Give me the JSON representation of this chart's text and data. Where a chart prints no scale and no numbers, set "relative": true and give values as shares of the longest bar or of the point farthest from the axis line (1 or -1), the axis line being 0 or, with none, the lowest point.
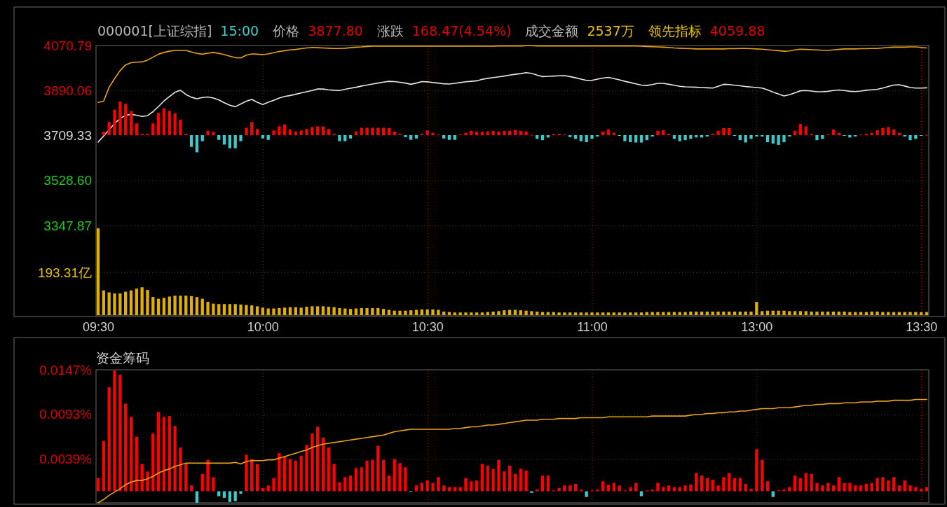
{
  "chart_data": [
    {
      "type": "line",
      "annotations": [
        "000001[上证综指]",
        "15:00",
        "价格",
        "3877.80",
        "涨跌",
        "168.47(4.54%)",
        "成交金额",
        "2537万",
        "领先指标",
        "4059.88"
      ],
      "categories": [
        "09:30",
        null,
        null,
        null,
        null,
        null,
        null,
        null,
        null,
        null,
        null,
        null,
        null,
        null,
        null,
        null,
        null,
        null,
        null,
        null,
        null,
        null,
        null,
        null,
        null,
        null,
        null,
        null,
        null,
        null,
        "10:00",
        null,
        null,
        null,
        null,
        null,
        null,
        null,
        null,
        null,
        null,
        null,
        null,
        null,
        null,
        null,
        null,
        null,
        null,
        null,
        null,
        null,
        null,
        null,
        null,
        null,
        null,
        null,
        null,
        null,
        "10:30",
        null,
        null,
        null,
        null,
        null,
        null,
        null,
        null,
        null,
        null,
        null,
        null,
        null,
        null,
        null,
        null,
        null,
        null,
        null,
        null,
        null,
        null,
        null,
        null,
        null,
        null,
        null,
        null,
        null,
        "11:00",
        null,
        null,
        null,
        null,
        null,
        null,
        null,
        null,
        null,
        null,
        null,
        null,
        null,
        null,
        null,
        null,
        null,
        null,
        null,
        null,
        null,
        null,
        null,
        null,
        null,
        null,
        null,
        null,
        null,
        "13:00",
        null,
        null,
        null,
        null,
        null,
        null,
        null,
        null,
        null,
        null,
        null,
        null,
        null,
        null,
        null,
        null,
        null,
        null,
        null,
        null,
        null,
        null,
        null,
        null,
        null,
        null,
        null,
        null,
        null,
        "13:30",
        null
      ],
      "ylim": [
        2987.8,
        4070.79
      ],
      "yticks": [
        4070.79,
        3890.06,
        3709.33,
        {
          "value": 3528.6,
          "label": "3528.60"
        },
        3347.87
      ],
      "y2lim": [
        0,
        1221
      ],
      "y2ticks": [
        {
          "value": 193.31,
          "label": "193.31亿"
        }
      ],
      "grid": true,
      "series": [
        {
          "color": "#e6e6e6",
          "values": [
            3683,
            3707,
            3732,
            3758,
            3777,
            3791,
            3794,
            3791,
            3786,
            3789,
            3805,
            3826,
            3848,
            3866,
            3883,
            3891,
            3874,
            3863,
            3857,
            3862,
            3864,
            3860,
            3852,
            3841,
            3831,
            3825,
            3836,
            3847,
            3854,
            3843,
            3834,
            3843,
            3851,
            3860,
            3866,
            3870,
            3875,
            3880,
            3885,
            3890,
            3896,
            3896,
            3893,
            3891,
            3890,
            3895,
            3899,
            3903,
            3908,
            3912,
            3916,
            3920,
            3924,
            3927,
            3926,
            3923,
            3920,
            3915,
            3920,
            3926,
            3925,
            3922,
            3920,
            3917,
            3916,
            3919,
            3922,
            3925,
            3927,
            3929,
            3935,
            3939,
            3942,
            3945,
            3948,
            3952,
            3955,
            3958,
            3962,
            3959,
            3952,
            3946,
            3947,
            3948,
            3949,
            3950,
            3946,
            3941,
            3936,
            3931,
            3931,
            3936,
            3940,
            3943,
            3938,
            3933,
            3927,
            3922,
            3917,
            3912,
            3910,
            3914,
            3919,
            3919,
            3915,
            3911,
            3907,
            3905,
            3904,
            3903,
            3902,
            3901,
            3900,
            3907,
            3915,
            3914,
            3911,
            3909,
            3906,
            3904,
            3902,
            3900,
            3893,
            3884,
            3876,
            3868,
            3873,
            3881,
            3889,
            3890,
            3888,
            3885,
            3885,
            3887,
            3890,
            3892,
            3890,
            3887,
            3886,
            3888,
            3891,
            3893,
            3895,
            3900,
            3906,
            3912,
            3913,
            3908,
            3902,
            3900,
            3900,
            3901
          ]
        },
        {
          "color": "#e8a317",
          "values": [
            3842,
            3847,
            3903,
            3938,
            3970,
            3993,
            4002,
            4004,
            4005,
            4012,
            4024,
            4036,
            4043,
            4048,
            4051,
            4051,
            4051,
            4045,
            4039,
            4036,
            4040,
            4043,
            4039,
            4034,
            4028,
            4022,
            4021,
            4032,
            4037,
            4036,
            4034,
            4037,
            4042,
            4047,
            4050,
            4053,
            4055,
            4058,
            4061,
            4063,
            4062,
            4061,
            4060,
            4059,
            4059,
            4060,
            4062,
            4064,
            4065,
            4067,
            4068,
            4068,
            4068,
            4068,
            4068,
            4068,
            4068,
            4068,
            4068,
            4068,
            4068,
            4068,
            4068,
            4068,
            4068,
            4068,
            4068,
            4068,
            4068,
            4068,
            4068,
            4068,
            4068,
            4069,
            4069,
            4069,
            4069,
            4069,
            4070,
            4070,
            4069,
            4069,
            4069,
            4069,
            4069,
            4069,
            4069,
            4069,
            4069,
            4069,
            4069,
            4069,
            4069,
            4069,
            4069,
            4069,
            4069,
            4069,
            4069,
            4068,
            4067,
            4066,
            4065,
            4064,
            4063,
            4061,
            4060,
            4059,
            4058,
            4057,
            4057,
            4057,
            4057,
            4057,
            4057,
            4058,
            4058,
            4059,
            4059,
            4058,
            4057,
            4056,
            4054,
            4052,
            4050,
            4048,
            4049,
            4053,
            4056,
            4055,
            4054,
            4053,
            4052,
            4051,
            4053,
            4055,
            4057,
            4057,
            4057,
            4058,
            4058,
            4059,
            4059,
            4061,
            4063,
            4064,
            4064,
            4064,
            4065,
            4065,
            4063,
            4061
          ]
        },
        {
          "type": "bar",
          "axis": "y2",
          "color": "#e0b000",
          "values": [
            393,
            112,
            103,
            98,
            98,
            106,
            112,
            120,
            126,
            114,
            82,
            74,
            78,
            84,
            88,
            88,
            88,
            86,
            82,
            74,
            60,
            52,
            50,
            50,
            50,
            50,
            48,
            46,
            44,
            40,
            34,
            30,
            30,
            32,
            34,
            36,
            36,
            34,
            38,
            40,
            40,
            40,
            38,
            36,
            32,
            30,
            28,
            30,
            32,
            32,
            32,
            32,
            28,
            24,
            20,
            20,
            20,
            22,
            24,
            26,
            26,
            26,
            24,
            16,
            14,
            12,
            12,
            12,
            12,
            12,
            12,
            14,
            16,
            18,
            22,
            24,
            24,
            22,
            20,
            18,
            16,
            14,
            14,
            14,
            12,
            12,
            12,
            12,
            12,
            12,
            12,
            12,
            12,
            12,
            12,
            12,
            12,
            12,
            12,
            12,
            14,
            14,
            14,
            14,
            14,
            14,
            14,
            14,
            16,
            16,
            16,
            16,
            16,
            16,
            16,
            16,
            16,
            16,
            16,
            16,
            60,
            18,
            20,
            20,
            20,
            20,
            18,
            18,
            18,
            18,
            16,
            16,
            16,
            16,
            16,
            16,
            16,
            14,
            14,
            14,
            14,
            16,
            16,
            14,
            14,
            14,
            14,
            14,
            14,
            14,
            14,
            14
          ]
        }
      ]
    },
    {
      "type": "bar",
      "relative": true,
      "tick_labels": false,
      "categories": [
        null,
        null,
        null,
        null,
        null,
        null,
        null,
        null,
        null,
        null,
        null,
        null,
        null,
        null,
        null,
        null,
        null,
        null,
        null,
        null,
        null,
        null,
        null,
        null,
        null,
        null,
        null,
        null,
        null,
        null,
        null,
        null,
        null,
        null,
        null,
        null,
        null,
        null,
        null,
        null,
        null,
        null,
        null,
        null,
        null,
        null,
        null,
        null,
        null,
        null,
        null,
        null,
        null,
        null,
        null,
        null,
        null,
        null,
        null,
        null,
        null,
        null,
        null,
        null,
        null,
        null,
        null,
        null,
        null,
        null,
        null,
        null,
        null,
        null,
        null,
        null,
        null,
        null,
        null,
        null,
        null,
        null,
        null,
        null,
        null,
        null,
        null,
        null,
        null,
        null,
        null,
        null,
        null,
        null,
        null,
        null,
        null,
        null,
        null,
        null,
        null,
        null,
        null,
        null,
        null,
        null,
        null,
        null,
        null,
        null,
        null,
        null,
        null,
        null,
        null,
        null,
        null,
        null,
        null,
        null,
        null,
        null,
        null,
        null,
        null,
        null,
        null,
        null,
        null,
        null,
        null,
        null,
        null,
        null,
        null,
        null,
        null,
        null,
        null,
        null,
        null,
        null,
        null,
        null,
        null,
        null,
        null,
        null,
        null,
        null,
        null,
        null
      ],
      "values": [
        null,
        0.1,
        0.39,
        0.76,
        1,
        0.93,
        0.72,
        0.35,
        0.04,
        0.04,
        0.35,
        0.66,
        0.8,
        0.72,
        0.65,
        0.46,
        0.04,
        -0.35,
        -0.51,
        -0.18,
        0.13,
        0.1,
        -0.14,
        -0.28,
        -0.39,
        -0.39,
        -0.18,
        0.22,
        0.39,
        0.18,
        -0.1,
        -0.14,
        0.14,
        0.26,
        0.32,
        0.17,
        0.11,
        0.14,
        0.18,
        0.24,
        0.26,
        0.26,
        0.18,
        0.04,
        -0.18,
        -0.18,
        -0.1,
        0.11,
        0.22,
        0.22,
        0.22,
        0.22,
        0.22,
        0.21,
        0.11,
        0.04,
        -0.06,
        -0.14,
        -0.1,
        0.04,
        0.14,
        0.07,
        0.02,
        -0.1,
        -0.14,
        -0.14,
        0.02,
        0.07,
        0.13,
        0.1,
        0.1,
        0.11,
        0.13,
        0.11,
        0.13,
        0.13,
        0.15,
        0.13,
        0.11,
        0.01,
        -0.11,
        -0.15,
        -0.07,
        0.04,
        0.04,
        0.02,
        -0.06,
        -0.11,
        -0.18,
        -0.21,
        -0.11,
        -0.04,
        0.11,
        0.17,
        0.07,
        -0.02,
        -0.18,
        -0.21,
        -0.22,
        -0.22,
        -0.15,
        -0.04,
        0.13,
        0.15,
        0.04,
        -0.11,
        -0.18,
        -0.15,
        -0.11,
        -0.07,
        -0.07,
        -0.04,
        0.04,
        0.13,
        0.21,
        0.21,
        -0.02,
        -0.15,
        -0.22,
        -0.11,
        -0.04,
        -0.04,
        -0.21,
        -0.25,
        -0.29,
        -0.21,
        -0.04,
        0.13,
        0.33,
        0.26,
        0.04,
        -0.15,
        -0.11,
        0.02,
        0.17,
        0.07,
        -0.02,
        -0.07,
        -0.04,
        0.02,
        0.04,
        0.07,
        0.15,
        0.21,
        0.24,
        0.17,
        0.07,
        -0.04,
        -0.15,
        -0.11,
        -0.02,
        0.01
      ],
      "colors": [
        null,
        "#ff0000",
        "#ff0000",
        "#ff0000",
        "#ff0000",
        "#ff0000",
        "#ff0000",
        "#ff0000",
        "#ff0000",
        "#ff0000",
        "#ff0000",
        "#ff0000",
        "#ff0000",
        "#ff0000",
        "#ff0000",
        "#ff0000",
        "#ff0000",
        "#3ec8c8",
        "#3ec8c8",
        "#3ec8c8",
        "#ff0000",
        "#ff0000",
        "#3ec8c8",
        "#3ec8c8",
        "#3ec8c8",
        "#3ec8c8",
        "#3ec8c8",
        "#ff0000",
        "#ff0000",
        "#ff0000",
        "#3ec8c8",
        "#3ec8c8",
        "#ff0000",
        "#ff0000",
        "#ff0000",
        "#ff0000",
        "#ff0000",
        "#ff0000",
        "#ff0000",
        "#ff0000",
        "#ff0000",
        "#ff0000",
        "#ff0000",
        "#ff0000",
        "#3ec8c8",
        "#3ec8c8",
        "#3ec8c8",
        "#ff0000",
        "#ff0000",
        "#ff0000",
        "#ff0000",
        "#ff0000",
        "#ff0000",
        "#ff0000",
        "#ff0000",
        "#ff0000",
        "#3ec8c8",
        "#3ec8c8",
        "#3ec8c8",
        "#ff0000",
        "#ff0000",
        "#ff0000",
        "#ff0000",
        "#3ec8c8",
        "#3ec8c8",
        "#3ec8c8",
        "#ff0000",
        "#ff0000",
        "#ff0000",
        "#ff0000",
        "#ff0000",
        "#ff0000",
        "#ff0000",
        "#ff0000",
        "#ff0000",
        "#ff0000",
        "#ff0000",
        "#ff0000",
        "#ff0000",
        "#ff0000",
        "#3ec8c8",
        "#3ec8c8",
        "#3ec8c8",
        "#ff0000",
        "#ff0000",
        "#ff0000",
        "#3ec8c8",
        "#3ec8c8",
        "#3ec8c8",
        "#3ec8c8",
        "#3ec8c8",
        "#3ec8c8",
        "#ff0000",
        "#ff0000",
        "#ff0000",
        "#3ec8c8",
        "#3ec8c8",
        "#3ec8c8",
        "#3ec8c8",
        "#3ec8c8",
        "#3ec8c8",
        "#3ec8c8",
        "#ff0000",
        "#ff0000",
        "#ff0000",
        "#3ec8c8",
        "#3ec8c8",
        "#3ec8c8",
        "#3ec8c8",
        "#3ec8c8",
        "#3ec8c8",
        "#3ec8c8",
        "#ff0000",
        "#ff0000",
        "#ff0000",
        "#ff0000",
        "#3ec8c8",
        "#3ec8c8",
        "#3ec8c8",
        "#3ec8c8",
        "#3ec8c8",
        "#3ec8c8",
        "#3ec8c8",
        "#3ec8c8",
        "#3ec8c8",
        "#3ec8c8",
        "#3ec8c8",
        "#ff0000",
        "#ff0000",
        "#ff0000",
        "#ff0000",
        "#3ec8c8",
        "#3ec8c8",
        "#ff0000",
        "#ff0000",
        "#ff0000",
        "#3ec8c8",
        "#3ec8c8",
        "#3ec8c8",
        "#ff0000",
        "#ff0000",
        "#ff0000",
        "#ff0000",
        "#ff0000",
        "#ff0000",
        "#ff0000",
        "#ff0000",
        "#3ec8c8",
        "#3ec8c8",
        "#3ec8c8",
        "#3ec8c8",
        "#ff0000"
      ]
    },
    {
      "type": "bar",
      "title": "资金筹码",
      "categories": [
        null,
        null,
        null,
        null,
        null,
        null,
        null,
        null,
        null,
        null,
        null,
        null,
        null,
        null,
        null,
        null,
        null,
        null,
        null,
        null,
        null,
        null,
        null,
        null,
        null,
        null,
        null,
        null,
        null,
        null,
        null,
        null,
        null,
        null,
        null,
        null,
        null,
        null,
        null,
        null,
        null,
        null,
        null,
        null,
        null,
        null,
        null,
        null,
        null,
        null,
        null,
        null,
        null,
        null,
        null,
        null,
        null,
        null,
        null,
        null,
        null,
        null,
        null,
        null,
        null,
        null,
        null,
        null,
        null,
        null,
        null,
        null,
        null,
        null,
        null,
        null,
        null,
        null,
        null,
        null,
        null,
        null,
        null,
        null,
        null,
        null,
        null,
        null,
        null,
        null,
        null,
        null,
        null,
        null,
        null,
        null,
        null,
        null,
        null,
        null,
        null,
        null,
        null,
        null,
        null,
        null,
        null,
        null,
        null,
        null,
        null,
        null,
        null,
        null,
        null,
        null,
        null,
        null,
        null,
        null,
        null,
        null,
        null,
        null,
        null,
        null,
        null,
        null,
        null,
        null,
        null,
        null,
        null,
        null,
        null,
        null,
        null,
        null,
        null,
        null,
        null,
        null,
        null,
        null,
        null,
        null,
        null,
        null,
        null,
        null,
        null,
        null
      ],
      "ylim": [
        -0.0014,
        0.0147
      ],
      "yticks": [
        {
          "value": 0.0147,
          "label": "0.0147%"
        },
        {
          "value": 0.0093,
          "label": "0.0093%"
        },
        {
          "value": 0.0039,
          "label": "0.0039%"
        }
      ],
      "grid": true,
      "tick_labels": "y",
      "series": [
        {
          "values": [
            0.0016,
            0.0061,
            0.0126,
            0.0146,
            0.0141,
            0.0106,
            0.009,
            0.0066,
            0.0033,
            0.0024,
            0.007,
            0.0096,
            0.009,
            0.0091,
            0.0079,
            0.0053,
            0.0033,
            0.0007,
            -0.0014,
            0.0021,
            0.0038,
            0.0017,
            -0.0006,
            -0.0008,
            -0.0013,
            -0.0012,
            -0.0003,
            0.0044,
            0.0039,
            0.0033,
            0.0004,
            0.0007,
            0.0016,
            0.0046,
            0.0042,
            0.0039,
            0.0037,
            0.0043,
            0.0056,
            0.007,
            0.0078,
            0.0065,
            0.0053,
            0.0033,
            0.0011,
            0.0017,
            0.0019,
            0.0028,
            0.0029,
            0.0037,
            0.0038,
            0.0055,
            0.0038,
            0.0019,
            0.0039,
            0.0034,
            0.0029,
            -0.0001,
            0.0007,
            0.001,
            0.0013,
            0.001,
            0.0017,
            0.0007,
            0.0005,
            0.0005,
            0.0005,
            0.0016,
            0.0012,
            0.0013,
            0.0033,
            0.0031,
            0.0027,
            0.0038,
            0.0024,
            0.0031,
            0.0021,
            0.0027,
            0.0025,
            -0.0002,
            0.0002,
            0.0019,
            0.0019,
            0.0001,
            0.0004,
            0.0007,
            0.0007,
            0.0009,
            0.0002,
            -0.0007,
            0.0001,
            0.0002,
            0.0012,
            0.0008,
            0.001,
            0.0007,
            0.0001,
            0.0005,
            0.001,
            -0.0006,
            0.0001,
            0.0002,
            0.001,
            0.0005,
            0.0007,
            0.0005,
            0.0005,
            0.0007,
            0.0008,
            0.0022,
            0.0019,
            0.0016,
            0.0014,
            0.0007,
            0.0017,
            0.0022,
            0.0016,
            0.0016,
            0.0009,
            0.0003,
            0.0051,
            0.0038,
            0.0012,
            -0.0007,
            0.0001,
            0.0002,
            0.0005,
            0.0019,
            0.0016,
            0.0022,
            0.0021,
            0.001,
            0.0007,
            0.001,
            0.0007,
            0.0017,
            0.001,
            0.001,
            0.0007,
            0.0007,
            0.0009,
            0.001,
            0.0016,
            0.0017,
            0.0013,
            0.0017,
            0.0007,
            0.0013,
            0.0007,
            0.0005,
            0.0003,
            0.0005
          ],
          "colors": [
            "#ff0000",
            "#ff0000",
            "#ff0000",
            "#ff0000",
            "#ff0000",
            "#ff0000",
            "#ff0000",
            "#ff0000",
            "#ff0000",
            "#ff0000",
            "#ff0000",
            "#ff0000",
            "#ff0000",
            "#ff0000",
            "#ff0000",
            "#ff0000",
            "#ff0000",
            "#ff0000",
            "#3ec8c8",
            "#ff0000",
            "#ff0000",
            "#ff0000",
            "#3ec8c8",
            "#3ec8c8",
            "#3ec8c8",
            "#3ec8c8",
            "#3ec8c8",
            "#ff0000",
            "#ff0000",
            "#ff0000",
            "#ff0000",
            "#ff0000",
            "#ff0000",
            "#ff0000",
            "#ff0000",
            "#ff0000",
            "#ff0000",
            "#ff0000",
            "#ff0000",
            "#ff0000",
            "#ff0000",
            "#ff0000",
            "#ff0000",
            "#ff0000",
            "#ff0000",
            "#ff0000",
            "#ff0000",
            "#ff0000",
            "#ff0000",
            "#ff0000",
            "#ff0000",
            "#ff0000",
            "#ff0000",
            "#ff0000",
            "#ff0000",
            "#ff0000",
            "#ff0000",
            "#3ec8c8",
            "#ff0000",
            "#ff0000",
            "#ff0000",
            "#ff0000",
            "#ff0000",
            "#ff0000",
            "#ff0000",
            "#ff0000",
            "#ff0000",
            "#ff0000",
            "#ff0000",
            "#ff0000",
            "#ff0000",
            "#ff0000",
            "#ff0000",
            "#ff0000",
            "#ff0000",
            "#ff0000",
            "#ff0000",
            "#ff0000",
            "#ff0000",
            "#3ec8c8",
            "#ff0000",
            "#ff0000",
            "#ff0000",
            "#ff0000",
            "#ff0000",
            "#ff0000",
            "#ff0000",
            "#ff0000",
            "#ff0000",
            "#3ec8c8",
            "#ff0000",
            "#ff0000",
            "#ff0000",
            "#ff0000",
            "#ff0000",
            "#ff0000",
            "#ff0000",
            "#ff0000",
            "#ff0000",
            "#3ec8c8",
            "#ff0000",
            "#ff0000",
            "#ff0000",
            "#ff0000",
            "#ff0000",
            "#ff0000",
            "#ff0000",
            "#ff0000",
            "#ff0000",
            "#ff0000",
            "#ff0000",
            "#ff0000",
            "#ff0000",
            "#ff0000",
            "#ff0000",
            "#ff0000",
            "#ff0000",
            "#ff0000",
            "#ff0000",
            "#ff0000",
            "#ff0000",
            "#ff0000",
            "#ff0000",
            "#3ec8c8",
            "#ff0000",
            "#ff0000",
            "#ff0000",
            "#ff0000",
            "#ff0000",
            "#ff0000",
            "#ff0000",
            "#ff0000",
            "#ff0000",
            "#ff0000",
            "#ff0000",
            "#ff0000",
            "#ff0000",
            "#ff0000",
            "#ff0000",
            "#ff0000",
            "#ff0000",
            "#ff0000",
            "#ff0000",
            "#ff0000",
            "#ff0000",
            "#ff0000",
            "#ff0000",
            "#ff0000",
            "#ff0000",
            "#ff0000",
            "#ff0000",
            "#ff0000"
          ]
        },
        {
          "type": "line",
          "color": "#e8a317",
          "values": [
            -0.0014,
            -0.001,
            -0.0005,
            -0.0001,
            0.0003,
            0.0008,
            0.0011,
            0.0013,
            0.0013,
            0.0015,
            0.0018,
            0.0022,
            0.0025,
            0.0027,
            0.003,
            0.0032,
            0.0034,
            0.0034,
            0.0034,
            0.0034,
            0.0034,
            0.0034,
            0.0034,
            0.0034,
            0.0034,
            0.0035,
            0.0033,
            0.0036,
            0.0037,
            0.0037,
            0.0037,
            0.0038,
            0.0038,
            0.004,
            0.0042,
            0.0044,
            0.0046,
            0.0048,
            0.005,
            0.0053,
            0.0055,
            0.0057,
            0.0058,
            0.0059,
            0.006,
            0.0061,
            0.0062,
            0.0063,
            0.0064,
            0.0065,
            0.0066,
            0.0067,
            0.0068,
            0.007,
            0.0072,
            0.0073,
            0.0074,
            0.0075,
            0.0075,
            0.0075,
            0.0075,
            0.0075,
            0.0075,
            0.0075,
            0.0075,
            0.0076,
            0.0076,
            0.0077,
            0.0078,
            0.0078,
            0.0079,
            0.008,
            0.008,
            0.0081,
            0.0082,
            0.0083,
            0.0084,
            0.0085,
            0.0086,
            0.0086,
            0.0086,
            0.0087,
            0.0087,
            0.0087,
            0.0088,
            0.0088,
            0.0088,
            0.0088,
            0.0089,
            0.0089,
            0.0089,
            0.0089,
            0.0089,
            0.009,
            0.009,
            0.009,
            0.009,
            0.009,
            0.009,
            0.009,
            0.009,
            0.0091,
            0.0091,
            0.0091,
            0.0091,
            0.0091,
            0.0091,
            0.0091,
            0.0092,
            0.0093,
            0.0093,
            0.0094,
            0.0094,
            0.0095,
            0.0095,
            0.0096,
            0.0096,
            0.0097,
            0.0097,
            0.0098,
            0.0099,
            0.01,
            0.01,
            0.01,
            0.0101,
            0.0101,
            0.0101,
            0.0102,
            0.0103,
            0.0104,
            0.0104,
            0.0105,
            0.0105,
            0.0106,
            0.0106,
            0.0106,
            0.0107,
            0.0107,
            0.0107,
            0.0108,
            0.0108,
            0.0108,
            0.0109,
            0.0109,
            0.0109,
            0.011,
            0.011,
            0.011,
            0.011,
            0.0111,
            0.0111,
            0.0111
          ]
        }
      ]
    }
  ]
}
